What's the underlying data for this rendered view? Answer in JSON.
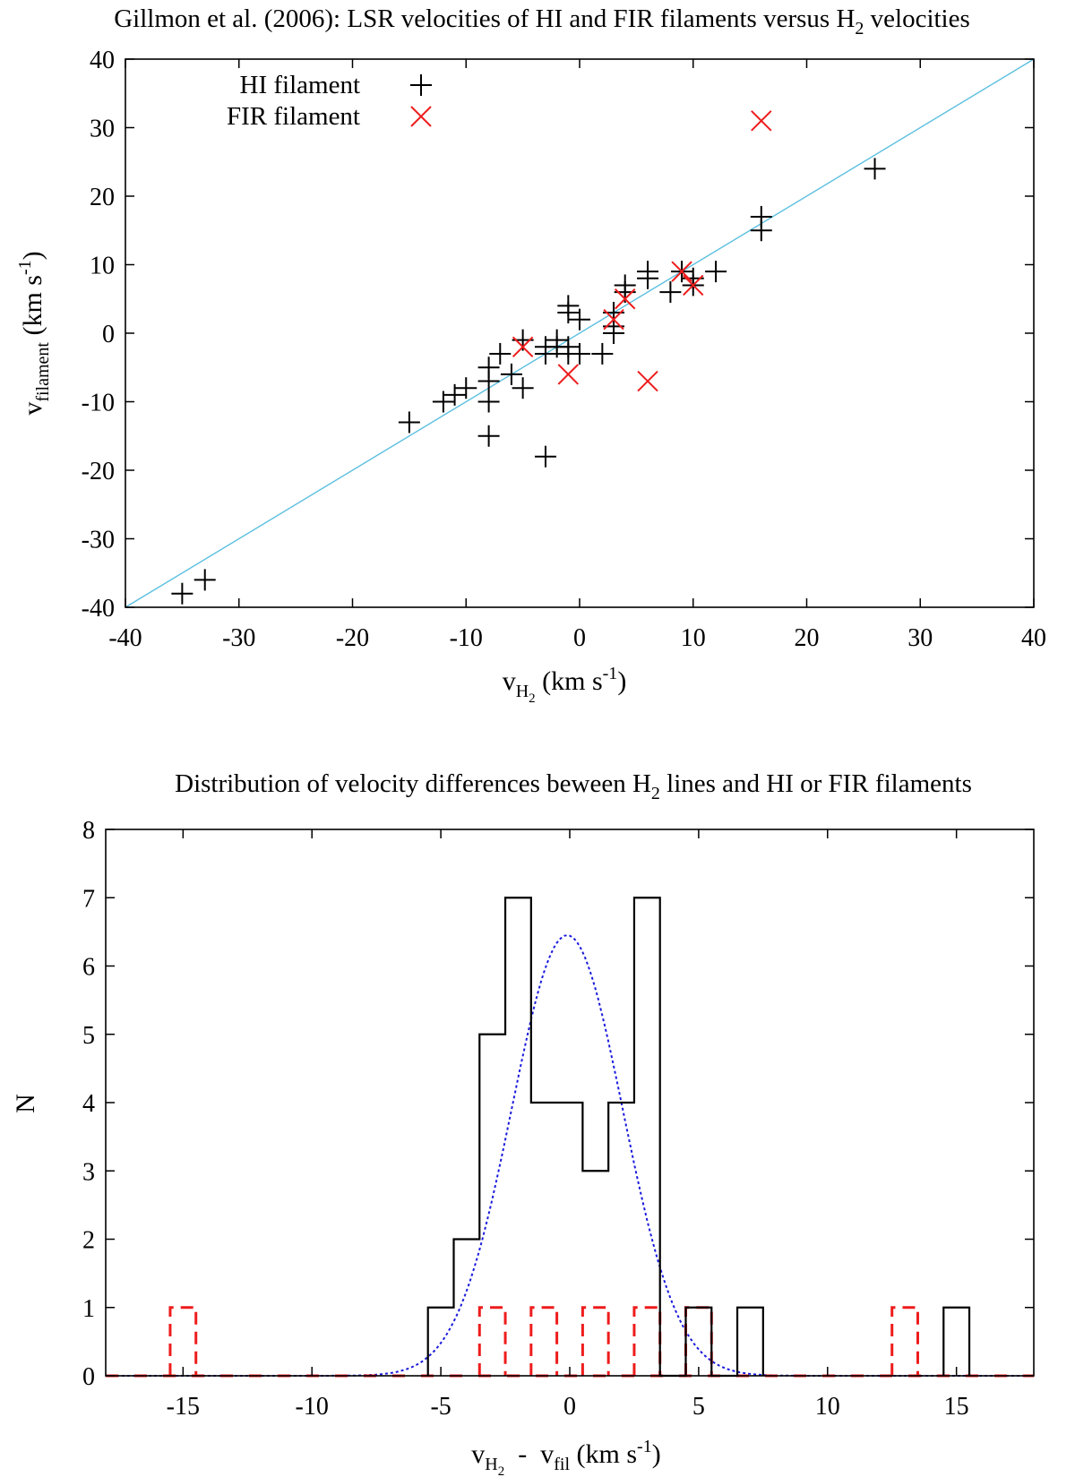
{
  "chart_data": [
    {
      "type": "scatter",
      "title_main": "Gillmon et al. (2006): LSR velocities of HI and FIR filaments versus H",
      "title_sub": "2",
      "title_tail": " velocities",
      "xlabel_main": "v",
      "xlabel_sub": "H",
      "xlabel_subsub": "2",
      "xlabel_tail": " (km s",
      "xlabel_sup": "-1",
      "xlabel_close": ")",
      "ylabel_main": "v",
      "ylabel_sub": "filament",
      "ylabel_tail": " (km s",
      "ylabel_sup": "-1",
      "ylabel_close": ")",
      "xlim": [
        -40,
        40
      ],
      "ylim": [
        -40,
        40
      ],
      "xticks": [
        -40,
        -30,
        -20,
        -10,
        0,
        10,
        20,
        30,
        40
      ],
      "yticks": [
        -40,
        -30,
        -20,
        -10,
        0,
        10,
        20,
        30,
        40
      ],
      "reference_line": {
        "name": "y = x",
        "color": "#5bbfe0"
      },
      "series": [
        {
          "name": "HI filament",
          "marker": "plus",
          "color": "#000000",
          "points": [
            [
              -35,
              -38
            ],
            [
              -33,
              -36
            ],
            [
              -15,
              -13
            ],
            [
              -12,
              -10
            ],
            [
              -11,
              -9
            ],
            [
              -10,
              -8
            ],
            [
              -8,
              -5
            ],
            [
              -8,
              -7
            ],
            [
              -8,
              -10
            ],
            [
              -8,
              -15
            ],
            [
              -7,
              -3
            ],
            [
              -6,
              -6
            ],
            [
              -5,
              -1
            ],
            [
              -5,
              -8
            ],
            [
              -3,
              -18
            ],
            [
              -3,
              -3
            ],
            [
              -3,
              -2
            ],
            [
              -2,
              -2
            ],
            [
              -2,
              -1
            ],
            [
              -1,
              4
            ],
            [
              -1,
              3
            ],
            [
              -1,
              -2
            ],
            [
              -1,
              -3
            ],
            [
              0,
              2
            ],
            [
              0,
              -3
            ],
            [
              2,
              -3
            ],
            [
              3,
              3
            ],
            [
              3,
              1
            ],
            [
              3,
              0
            ],
            [
              4,
              7
            ],
            [
              4,
              6
            ],
            [
              6,
              9
            ],
            [
              6,
              8
            ],
            [
              8,
              6
            ],
            [
              9,
              9
            ],
            [
              10,
              8
            ],
            [
              10,
              7
            ],
            [
              12,
              9
            ],
            [
              16,
              17
            ],
            [
              16,
              15
            ],
            [
              26,
              24
            ]
          ]
        },
        {
          "name": "FIR filament",
          "marker": "cross",
          "color": "#ee1c1c",
          "points": [
            [
              -5,
              -2
            ],
            [
              -1,
              -6
            ],
            [
              3,
              2
            ],
            [
              4,
              5
            ],
            [
              6,
              -7
            ],
            [
              9,
              9
            ],
            [
              10,
              7
            ],
            [
              16,
              31
            ]
          ]
        }
      ]
    },
    {
      "type": "histogram",
      "title_main": "Distribution of velocity differences beween H",
      "title_sub": "2",
      "title_tail": " lines and HI or FIR filaments",
      "xlabel_main": "v",
      "xlabel_sub": "H",
      "xlabel_subsub": "2",
      "xlabel_mid": "  -  v",
      "xlabel_sub2": "fil",
      "xlabel_tail": " (km s",
      "xlabel_sup": "-1",
      "xlabel_close": ")",
      "ylabel": "N",
      "xlim": [
        -18,
        18
      ],
      "ylim": [
        0,
        8
      ],
      "xticks": [
        -15,
        -10,
        -5,
        0,
        5,
        10,
        15
      ],
      "yticks": [
        0,
        1,
        2,
        3,
        4,
        5,
        6,
        7,
        8
      ],
      "bin_width": 1,
      "series": [
        {
          "name": "HI filament",
          "style": "solid",
          "color": "#000000",
          "bins": [
            {
              "center": -5,
              "count": 1
            },
            {
              "center": -4,
              "count": 2
            },
            {
              "center": -3,
              "count": 5
            },
            {
              "center": -2,
              "count": 7
            },
            {
              "center": -1,
              "count": 4
            },
            {
              "center": 0,
              "count": 4
            },
            {
              "center": 1,
              "count": 3
            },
            {
              "center": 2,
              "count": 4
            },
            {
              "center": 3,
              "count": 7
            },
            {
              "center": 4,
              "count": 0
            },
            {
              "center": 5,
              "count": 1
            },
            {
              "center": 6,
              "count": 0
            },
            {
              "center": 7,
              "count": 1
            },
            {
              "center": 15,
              "count": 1
            }
          ]
        },
        {
          "name": "FIR filament",
          "style": "dashed",
          "color": "#ee1c1c",
          "bins": [
            {
              "center": -15,
              "count": 1
            },
            {
              "center": -3,
              "count": 1
            },
            {
              "center": -1,
              "count": 1
            },
            {
              "center": 1,
              "count": 1
            },
            {
              "center": 3,
              "count": 1
            },
            {
              "center": 5,
              "count": 1
            },
            {
              "center": 13,
              "count": 1
            }
          ]
        }
      ],
      "gaussian_fit": {
        "amplitude": 6.45,
        "mean": -0.1,
        "sigma": 2.15,
        "color": "#1a1adc",
        "style": "dotted"
      }
    }
  ]
}
